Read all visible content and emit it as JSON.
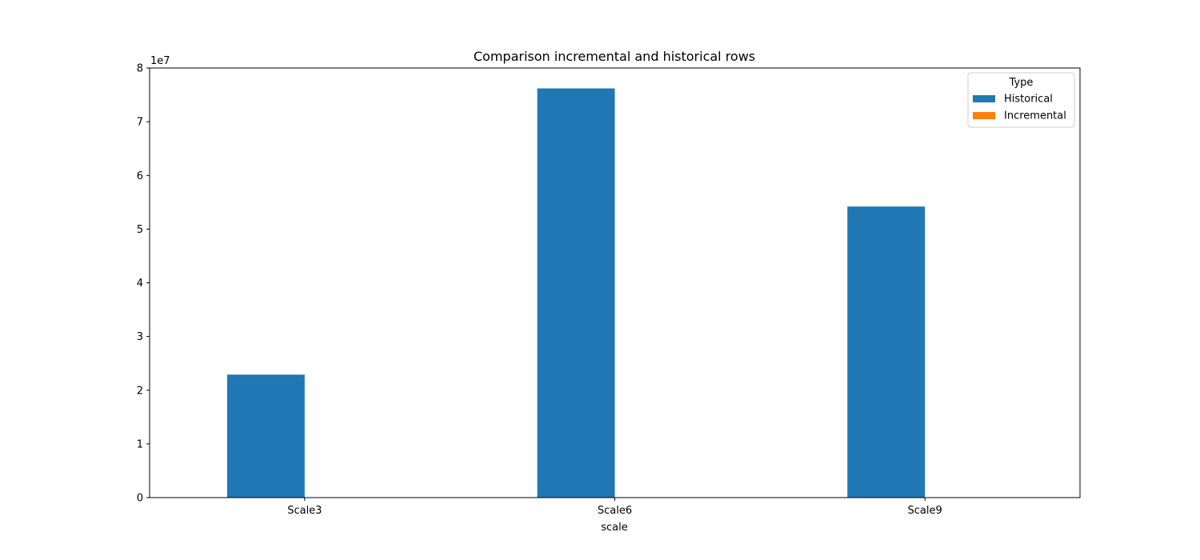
{
  "chart_data": {
    "type": "bar",
    "title": "Comparison incremental and historical rows",
    "xlabel": "scale",
    "ylabel": "",
    "categories": [
      "Scale3",
      "Scale6",
      "Scale9"
    ],
    "series": [
      {
        "name": "Historical",
        "values": [
          22900000,
          76200000,
          54200000
        ],
        "color": "#1f77b4"
      },
      {
        "name": "Incremental",
        "values": [
          0,
          0,
          0
        ],
        "color": "#ff7f0e"
      }
    ],
    "ylim": [
      0,
      80000000
    ],
    "yticks": [
      0,
      1,
      2,
      3,
      4,
      5,
      6,
      7,
      8
    ],
    "y_scale_label": "1e7",
    "grid": false,
    "legend": {
      "title": "Type",
      "placement": "top-right"
    }
  }
}
